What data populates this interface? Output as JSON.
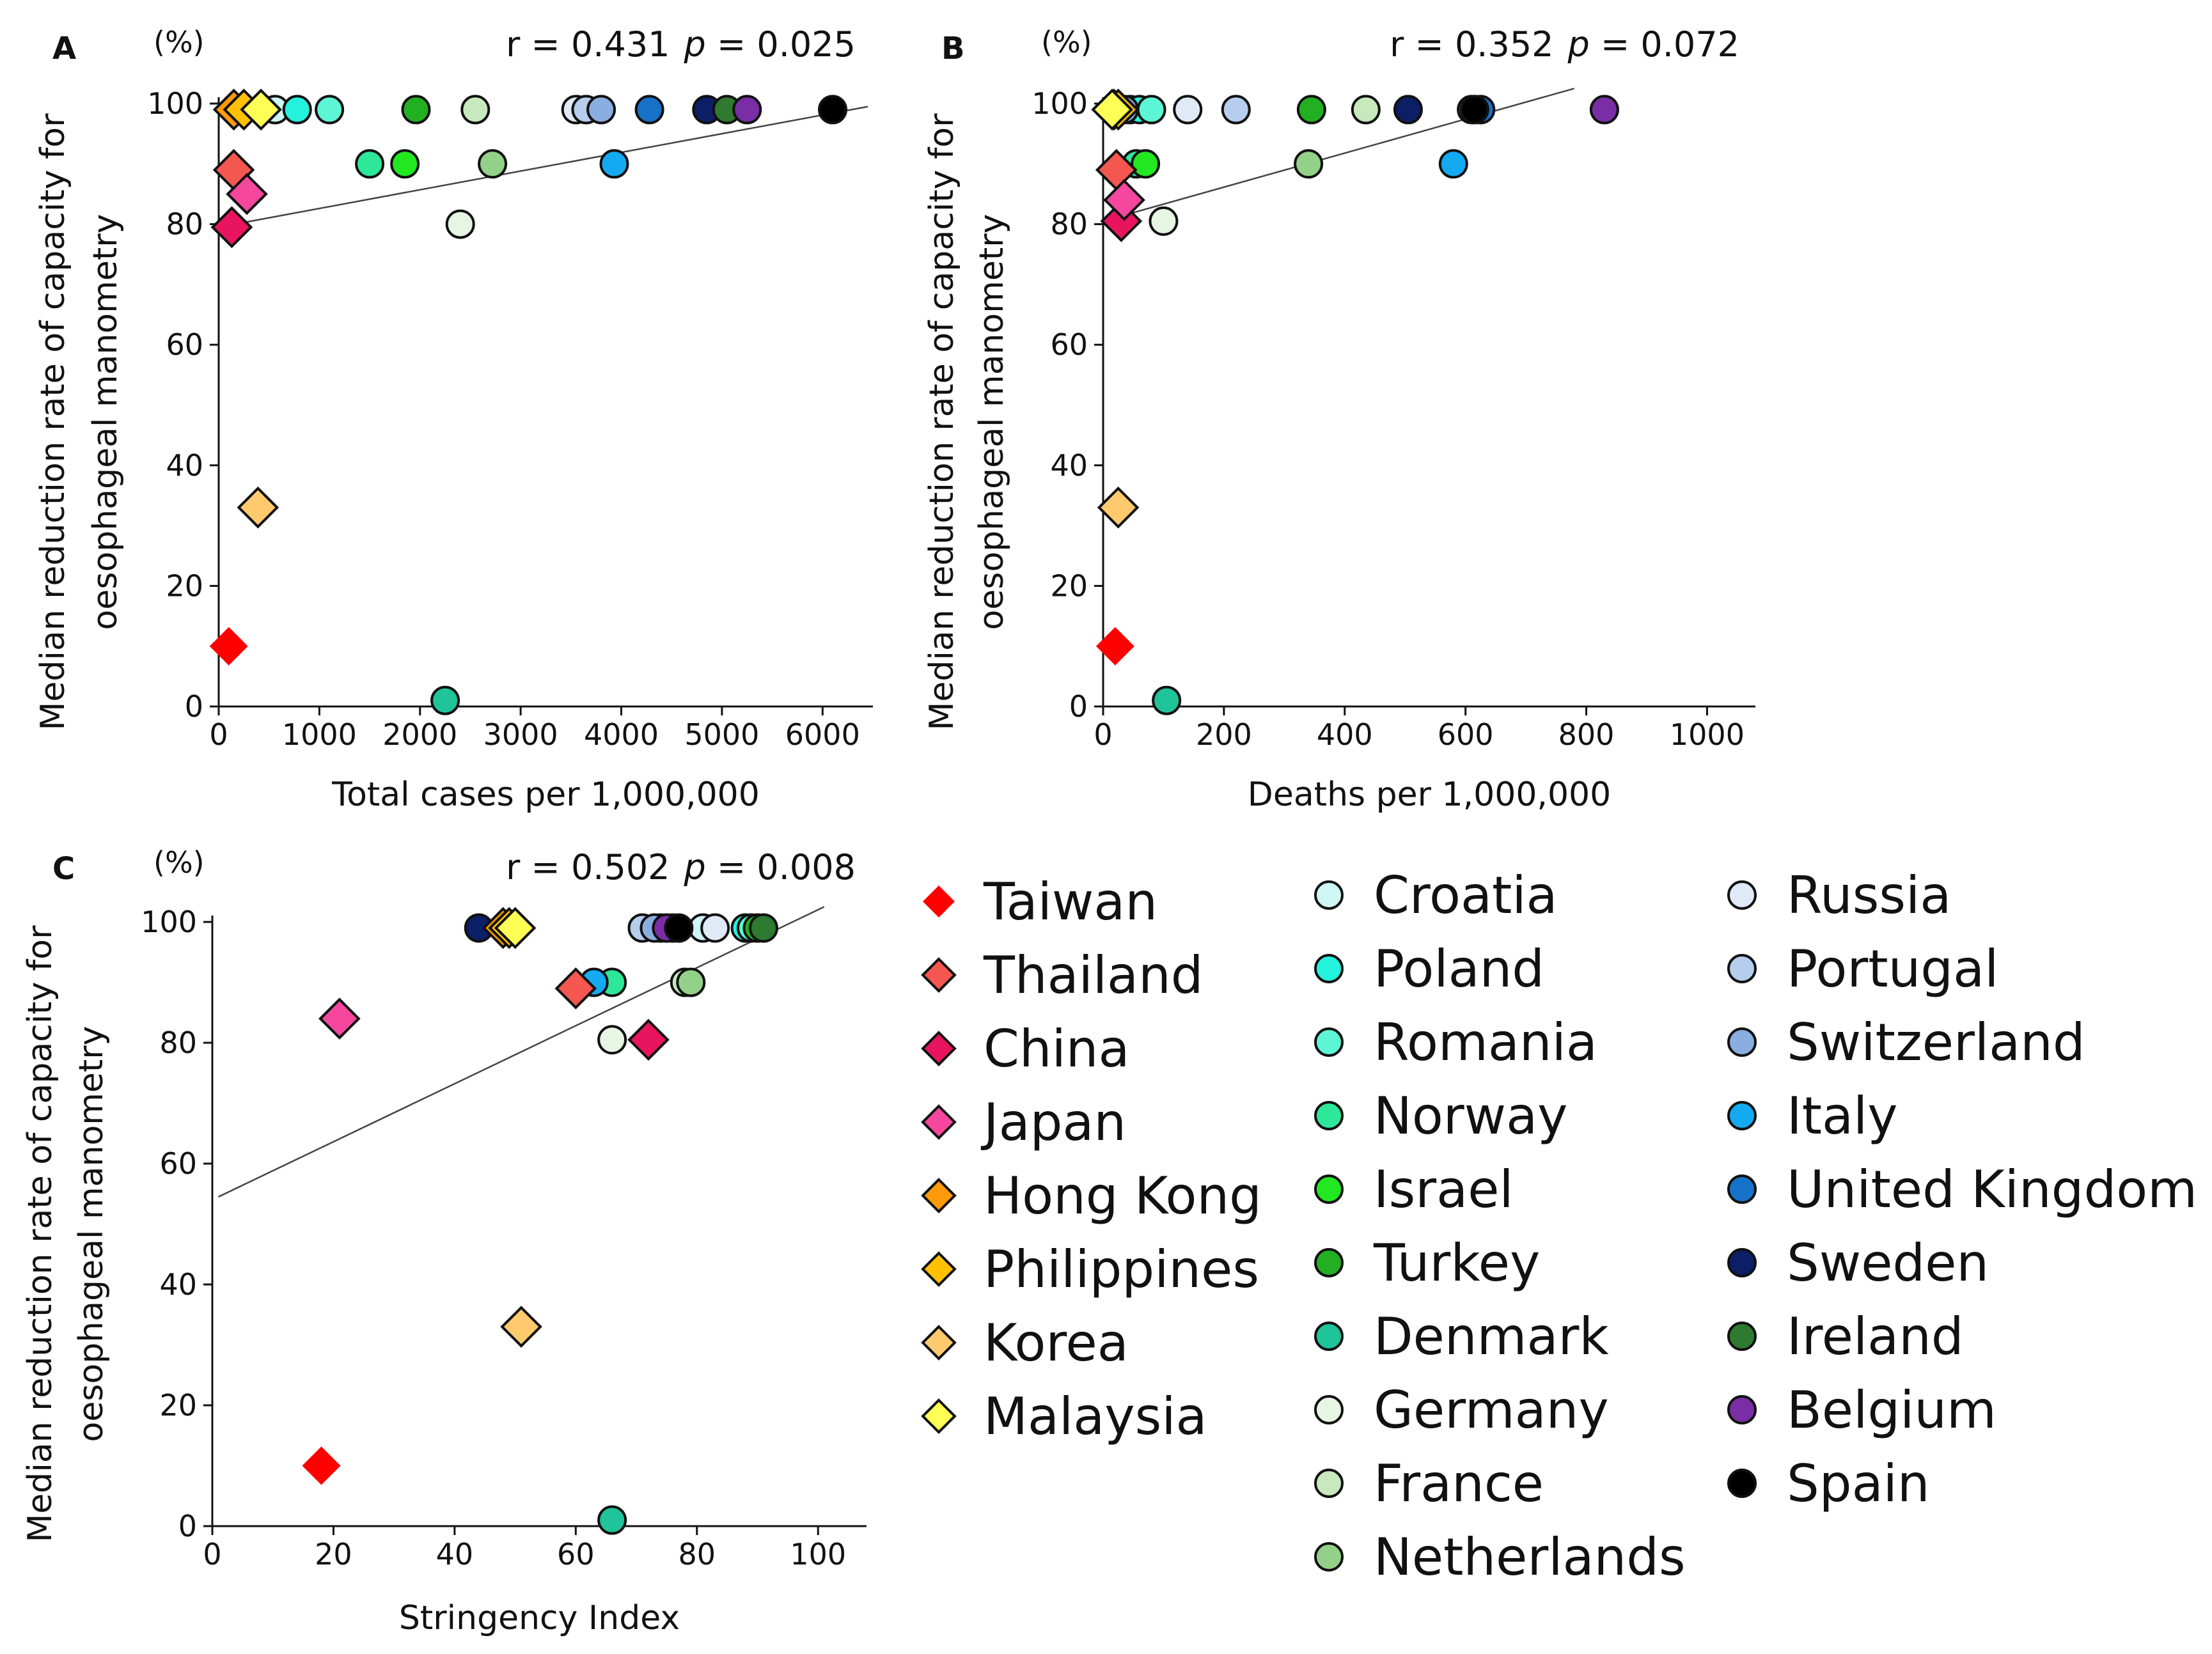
{
  "chart_data": [
    {
      "type": "scatter",
      "panel": "A",
      "unit_label": "(%)",
      "xlabel": "Total cases per 1,000,000",
      "ylabel_line1": "Median reduction rate of capacity for",
      "ylabel_line2": "oesophageal manometry",
      "xlim": [
        0,
        6500
      ],
      "ylim": [
        0,
        100
      ],
      "xticks": [
        0,
        1000,
        2000,
        3000,
        4000,
        5000,
        6000
      ],
      "yticks": [
        0,
        20,
        40,
        60,
        80,
        100
      ],
      "stat_r": "r = 0.431",
      "stat_p_symbol": "p",
      "stat_p_value": " = 0.025",
      "regression": [
        [
          0,
          79.5
        ],
        [
          6450,
          99.5
        ]
      ],
      "points": [
        {
          "country": "Taiwan",
          "x": 100,
          "y": 10
        },
        {
          "country": "Thailand",
          "x": 150,
          "y": 89
        },
        {
          "country": "China",
          "x": 130,
          "y": 79.5
        },
        {
          "country": "Japan",
          "x": 280,
          "y": 85
        },
        {
          "country": "Hong Kong",
          "x": 150,
          "y": 99
        },
        {
          "country": "Philippines",
          "x": 250,
          "y": 99
        },
        {
          "country": "Korea",
          "x": 390,
          "y": 33
        },
        {
          "country": "Malaysia",
          "x": 420,
          "y": 99
        },
        {
          "country": "Croatia",
          "x": 560,
          "y": 99
        },
        {
          "country": "Poland",
          "x": 780,
          "y": 99
        },
        {
          "country": "Romania",
          "x": 1100,
          "y": 99
        },
        {
          "country": "Norway",
          "x": 1500,
          "y": 90
        },
        {
          "country": "Israel",
          "x": 1850,
          "y": 90
        },
        {
          "country": "Turkey",
          "x": 1960,
          "y": 99
        },
        {
          "country": "Denmark",
          "x": 2250,
          "y": 1
        },
        {
          "country": "Germany",
          "x": 2400,
          "y": 80
        },
        {
          "country": "France",
          "x": 2550,
          "y": 99
        },
        {
          "country": "Netherlands",
          "x": 2720,
          "y": 90
        },
        {
          "country": "Russia",
          "x": 3550,
          "y": 99
        },
        {
          "country": "Portugal",
          "x": 3650,
          "y": 99
        },
        {
          "country": "Switzerland",
          "x": 3800,
          "y": 99
        },
        {
          "country": "Italy",
          "x": 3930,
          "y": 90
        },
        {
          "country": "United Kingdom",
          "x": 4280,
          "y": 99
        },
        {
          "country": "Sweden",
          "x": 4850,
          "y": 99
        },
        {
          "country": "Ireland",
          "x": 5050,
          "y": 99
        },
        {
          "country": "Belgium",
          "x": 5250,
          "y": 99
        },
        {
          "country": "Spain",
          "x": 6100,
          "y": 99
        }
      ]
    },
    {
      "type": "scatter",
      "panel": "B",
      "unit_label": "(%)",
      "xlabel": "Deaths per 1,000,000",
      "ylabel_line1": "Median reduction rate of capacity for",
      "ylabel_line2": "oesophageal manometry",
      "xlim": [
        0,
        1080
      ],
      "ylim": [
        0,
        100
      ],
      "xticks": [
        0,
        200,
        400,
        600,
        800,
        1000
      ],
      "yticks": [
        0,
        20,
        40,
        60,
        80,
        100
      ],
      "stat_r": "r = 0.352",
      "stat_p_symbol": "p",
      "stat_p_value": " = 0.072",
      "regression": [
        [
          0,
          80.5
        ],
        [
          780,
          102.5
        ]
      ],
      "points": [
        {
          "country": "Taiwan",
          "x": 20,
          "y": 10
        },
        {
          "country": "Thailand",
          "x": 22,
          "y": 89
        },
        {
          "country": "China",
          "x": 30,
          "y": 80.5
        },
        {
          "country": "Japan",
          "x": 35,
          "y": 84
        },
        {
          "country": "Hong Kong",
          "x": 18,
          "y": 99
        },
        {
          "country": "Philippines",
          "x": 25,
          "y": 99
        },
        {
          "country": "Korea",
          "x": 25,
          "y": 33
        },
        {
          "country": "Malaysia",
          "x": 15,
          "y": 99
        },
        {
          "country": "Croatia",
          "x": 45,
          "y": 99
        },
        {
          "country": "Poland",
          "x": 60,
          "y": 99
        },
        {
          "country": "Romania",
          "x": 80,
          "y": 99
        },
        {
          "country": "Norway",
          "x": 55,
          "y": 90
        },
        {
          "country": "Israel",
          "x": 70,
          "y": 90
        },
        {
          "country": "Turkey",
          "x": 345,
          "y": 99
        },
        {
          "country": "Denmark",
          "x": 105,
          "y": 1
        },
        {
          "country": "Germany",
          "x": 100,
          "y": 80.5
        },
        {
          "country": "France",
          "x": 435,
          "y": 99
        },
        {
          "country": "Netherlands",
          "x": 340,
          "y": 90
        },
        {
          "country": "Russia",
          "x": 140,
          "y": 99
        },
        {
          "country": "Portugal",
          "x": 220,
          "y": 99
        },
        {
          "country": "Switzerland",
          "x": 35,
          "y": 99
        },
        {
          "country": "Italy",
          "x": 580,
          "y": 90
        },
        {
          "country": "United Kingdom",
          "x": 625,
          "y": 99
        },
        {
          "country": "Sweden",
          "x": 505,
          "y": 99
        },
        {
          "country": "Ireland",
          "x": 610,
          "y": 99
        },
        {
          "country": "Belgium",
          "x": 830,
          "y": 99
        },
        {
          "country": "Spain",
          "x": 615,
          "y": 99
        }
      ]
    },
    {
      "type": "scatter",
      "panel": "C",
      "unit_label": "(%)",
      "xlabel": "Stringency Index",
      "ylabel_line1": "Median reduction rate of capacity for",
      "ylabel_line2": "oesophageal manometry",
      "xlim": [
        0,
        108
      ],
      "ylim": [
        0,
        100
      ],
      "xticks": [
        0,
        20,
        40,
        60,
        80,
        100
      ],
      "yticks": [
        0,
        20,
        40,
        60,
        80,
        100
      ],
      "stat_r": "r = 0.502",
      "stat_p_symbol": "p",
      "stat_p_value": " = 0.008",
      "regression": [
        [
          1,
          54.5
        ],
        [
          101,
          102.5
        ]
      ],
      "points": [
        {
          "country": "Taiwan",
          "x": 18,
          "y": 10
        },
        {
          "country": "Thailand",
          "x": 60,
          "y": 89
        },
        {
          "country": "China",
          "x": 72,
          "y": 80.5
        },
        {
          "country": "Japan",
          "x": 21,
          "y": 84
        },
        {
          "country": "Hong Kong",
          "x": 48,
          "y": 99
        },
        {
          "country": "Philippines",
          "x": 49,
          "y": 99
        },
        {
          "country": "Korea",
          "x": 51,
          "y": 33
        },
        {
          "country": "Malaysia",
          "x": 50,
          "y": 99
        },
        {
          "country": "Croatia",
          "x": 81,
          "y": 99
        },
        {
          "country": "Poland",
          "x": 88,
          "y": 99
        },
        {
          "country": "Romania",
          "x": 89,
          "y": 99
        },
        {
          "country": "Norway",
          "x": 66,
          "y": 90
        },
        {
          "country": "Israel",
          "x": 74,
          "y": 99
        },
        {
          "country": "Turkey",
          "x": 90,
          "y": 99
        },
        {
          "country": "Denmark",
          "x": 66,
          "y": 1
        },
        {
          "country": "Germany",
          "x": 66,
          "y": 80.5
        },
        {
          "country": "France",
          "x": 78,
          "y": 90
        },
        {
          "country": "Netherlands",
          "x": 79,
          "y": 90
        },
        {
          "country": "Russia",
          "x": 83,
          "y": 99
        },
        {
          "country": "Portugal",
          "x": 71,
          "y": 99
        },
        {
          "country": "Switzerland",
          "x": 73,
          "y": 99
        },
        {
          "country": "Italy",
          "x": 63,
          "y": 90
        },
        {
          "country": "United Kingdom",
          "x": 76,
          "y": 99
        },
        {
          "country": "Sweden",
          "x": 44,
          "y": 99
        },
        {
          "country": "Ireland",
          "x": 91,
          "y": 99
        },
        {
          "country": "Belgium",
          "x": 75,
          "y": 99
        },
        {
          "country": "Spain",
          "x": 77,
          "y": 99
        }
      ]
    }
  ],
  "legend": [
    {
      "name": "Taiwan",
      "color": "#ff0000",
      "shape": "diamond",
      "outline": false
    },
    {
      "name": "Thailand",
      "color": "#f4574f",
      "shape": "diamond",
      "outline": true
    },
    {
      "name": "China",
      "color": "#e8155e",
      "shape": "diamond",
      "outline": true
    },
    {
      "name": "Japan",
      "color": "#f5479e",
      "shape": "diamond",
      "outline": true
    },
    {
      "name": "Hong Kong",
      "color": "#ff9a0a",
      "shape": "diamond",
      "outline": true
    },
    {
      "name": "Philippines",
      "color": "#ffc100",
      "shape": "diamond",
      "outline": true
    },
    {
      "name": "Korea",
      "color": "#ffca6e",
      "shape": "diamond",
      "outline": true
    },
    {
      "name": "Malaysia",
      "color": "#ffff55",
      "shape": "diamond",
      "outline": true
    },
    {
      "name": "Croatia",
      "color": "#cdf6f5",
      "shape": "circle",
      "outline": true
    },
    {
      "name": "Poland",
      "color": "#23f2dc",
      "shape": "circle",
      "outline": true
    },
    {
      "name": "Romania",
      "color": "#5cf5d5",
      "shape": "circle",
      "outline": true
    },
    {
      "name": "Norway",
      "color": "#2ee89a",
      "shape": "circle",
      "outline": true
    },
    {
      "name": "Israel",
      "color": "#22e822",
      "shape": "circle",
      "outline": true
    },
    {
      "name": "Turkey",
      "color": "#22b022",
      "shape": "circle",
      "outline": true
    },
    {
      "name": "Denmark",
      "color": "#20c49a",
      "shape": "circle",
      "outline": true
    },
    {
      "name": "Germany",
      "color": "#e6f6e3",
      "shape": "circle",
      "outline": true
    },
    {
      "name": "France",
      "color": "#c8e8be",
      "shape": "circle",
      "outline": true
    },
    {
      "name": "Netherlands",
      "color": "#94d188",
      "shape": "circle",
      "outline": true
    },
    {
      "name": "Russia",
      "color": "#e0eaf6",
      "shape": "circle",
      "outline": true
    },
    {
      "name": "Portugal",
      "color": "#b6cdee",
      "shape": "circle",
      "outline": true
    },
    {
      "name": "Switzerland",
      "color": "#8aaee0",
      "shape": "circle",
      "outline": true
    },
    {
      "name": "Italy",
      "color": "#14aaf2",
      "shape": "circle",
      "outline": true
    },
    {
      "name": "United Kingdom",
      "color": "#1672c8",
      "shape": "circle",
      "outline": true
    },
    {
      "name": "Sweden",
      "color": "#0b1e66",
      "shape": "circle",
      "outline": true
    },
    {
      "name": "Ireland",
      "color": "#2e7a30",
      "shape": "circle",
      "outline": true
    },
    {
      "name": "Belgium",
      "color": "#7a2ea6",
      "shape": "circle",
      "outline": true
    },
    {
      "name": "Spain",
      "color": "#000000",
      "shape": "circle",
      "outline": true
    }
  ]
}
